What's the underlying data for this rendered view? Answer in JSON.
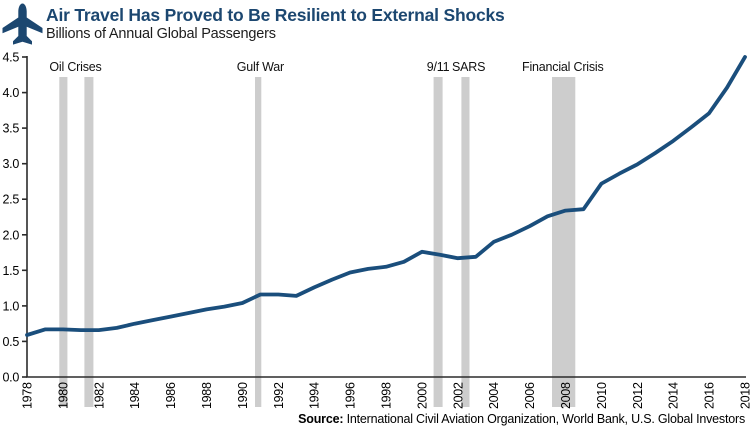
{
  "header": {
    "title": "Air Travel Has Proved to Be Resilient to External Shocks",
    "subtitle": "Billions of Annual Global Passengers"
  },
  "source": {
    "prefix": "Source:",
    "text": " International Civil Aviation Organization, World Bank, U.S. Global Investors"
  },
  "colors": {
    "line": "#1a4e7c",
    "title": "#1c4770",
    "band": "#cdcdcd",
    "axis": "#2b2b2b"
  },
  "chart_data": {
    "type": "line",
    "title": "Air Travel Has Proved to Be Resilient to External Shocks",
    "ylabel": "Billions of Annual Global Passengers",
    "ylim": [
      0,
      4.5
    ],
    "ytick_step": 0.5,
    "xlim": [
      1978,
      2018
    ],
    "xtick_step": 2,
    "grid": false,
    "legend": null,
    "x": [
      1978,
      1979,
      1980,
      1981,
      1982,
      1983,
      1984,
      1985,
      1986,
      1987,
      1988,
      1989,
      1990,
      1991,
      1992,
      1993,
      1994,
      1995,
      1996,
      1997,
      1998,
      1999,
      2000,
      2001,
      2002,
      2003,
      2004,
      2005,
      2006,
      2007,
      2008,
      2009,
      2010,
      2011,
      2012,
      2013,
      2014,
      2015,
      2016,
      2017,
      2018
    ],
    "values": [
      0.59,
      0.67,
      0.67,
      0.66,
      0.66,
      0.69,
      0.75,
      0.8,
      0.85,
      0.9,
      0.95,
      0.99,
      1.04,
      1.16,
      1.16,
      1.14,
      1.26,
      1.37,
      1.47,
      1.52,
      1.55,
      1.62,
      1.76,
      1.72,
      1.67,
      1.69,
      1.9,
      2.0,
      2.12,
      2.26,
      2.34,
      2.36,
      2.72,
      2.86,
      2.99,
      3.15,
      3.32,
      3.51,
      3.71,
      4.07,
      4.5
    ],
    "events": [
      {
        "label": "Oil Crises",
        "label_year": 1980.7,
        "bands": [
          [
            1979.8,
            1980.25
          ],
          [
            1981.2,
            1981.7
          ]
        ]
      },
      {
        "label": "Gulf War",
        "label_year": 1991.0,
        "bands": [
          [
            1990.7,
            1991.05
          ]
        ]
      },
      {
        "label": "9/11",
        "label_year": 2000.9,
        "bands": [
          [
            2000.65,
            2001.15
          ]
        ]
      },
      {
        "label": "SARS",
        "label_year": 2002.6,
        "bands": [
          [
            2002.2,
            2002.65
          ]
        ]
      },
      {
        "label": "Financial Crisis",
        "label_year": 2007.85,
        "bands": [
          [
            2007.25,
            2008.55
          ]
        ]
      }
    ]
  }
}
